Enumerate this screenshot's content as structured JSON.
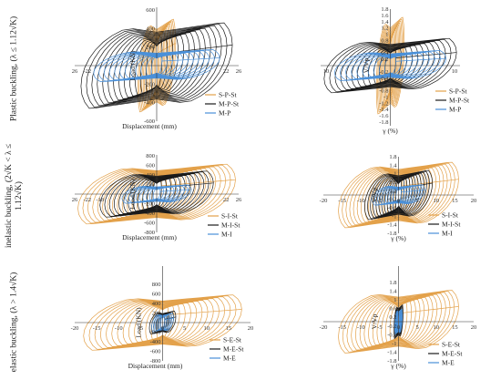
{
  "row_labels": [
    [
      "Plastic buckling, (λ ≤ 1.12√K)"
    ],
    [
      "inelastic buckling, (2√K < λ ≤",
      "1.12√K)"
    ],
    [
      "elastic buckling, (λ > 1.4√K)"
    ]
  ],
  "colors": {
    "St_gold": "#E3A14A",
    "M_black": "#1a1a1a",
    "M_blue": "#4A90D9",
    "axis": "#333333"
  },
  "chart_data": [
    {
      "type": "line",
      "row": 0,
      "col": 0,
      "xlabel": "Displacement (mm)",
      "ylabel": "Load (KN)",
      "xlim": [
        -26,
        26
      ],
      "ylim": [
        -600,
        600
      ],
      "x_ticks": [
        "26",
        "-22",
        "22",
        "26"
      ],
      "y_ticks": [
        "600",
        "400",
        "200",
        "-200",
        "-400",
        "-600"
      ],
      "legend": [
        "S-P-St",
        "M-P-St",
        "M-P"
      ],
      "series": [
        {
          "name": "S-P-St",
          "color": "gold",
          "amp": 6,
          "peak": 520,
          "cycles": 14
        },
        {
          "name": "M-P-St",
          "color": "black",
          "amp": 24,
          "peak": 480,
          "cycles": 14
        },
        {
          "name": "M-P",
          "color": "blue",
          "amp": 20,
          "peak": 180,
          "cycles": 12
        }
      ]
    },
    {
      "type": "line",
      "row": 0,
      "col": 1,
      "xlabel": "γ (%)",
      "ylabel": "V/Vp",
      "xlim": [
        -10,
        10
      ],
      "ylim": [
        -1.8,
        1.8
      ],
      "x_ticks": [
        "10",
        "10"
      ],
      "y_ticks": [
        "1.8",
        "1.6",
        "1.4",
        "1.2",
        "1",
        "0.8",
        "0.6",
        "0.4",
        "0.2",
        "-0.2",
        "-0.4",
        "-0.6",
        "-0.8",
        "-1",
        "-1.2",
        "-1.4",
        "-1.6",
        "-1.8"
      ],
      "legend": [
        "S-P-St",
        "M-P-St",
        "M-P"
      ],
      "series": [
        {
          "name": "S-P-St",
          "color": "gold",
          "amp": 2,
          "peak": 1.6,
          "cycles": 12
        },
        {
          "name": "M-P-St",
          "color": "black",
          "amp": 9.5,
          "peak": 0.9,
          "cycles": 12
        },
        {
          "name": "M-P",
          "color": "blue",
          "amp": 8,
          "peak": 0.5,
          "cycles": 10
        }
      ]
    },
    {
      "type": "line",
      "row": 1,
      "col": 0,
      "xlabel": "Displacement (mm)",
      "ylabel": "Load (KN)",
      "xlim": [
        -26,
        26
      ],
      "ylim": [
        -800,
        800
      ],
      "x_ticks": [
        "26",
        "-22",
        "-18",
        "22",
        "26"
      ],
      "y_ticks": [
        "800",
        "600",
        "400",
        "200",
        "-200",
        "-400",
        "-600",
        "-800"
      ],
      "legend": [
        "S-I-St",
        "M-I-St",
        "M-I"
      ],
      "series": [
        {
          "name": "S-I-St",
          "color": "gold",
          "amp": 25,
          "peak": 650,
          "cycles": 16
        },
        {
          "name": "M-I-St",
          "color": "black",
          "amp": 18,
          "peak": 500,
          "cycles": 12
        },
        {
          "name": "M-I",
          "color": "blue",
          "amp": 11,
          "peak": 200,
          "cycles": 10
        }
      ]
    },
    {
      "type": "line",
      "row": 1,
      "col": 1,
      "xlabel": "γ (%)",
      "ylabel": "V/Vp",
      "xlim": [
        -20,
        20
      ],
      "ylim": [
        -1.8,
        1.8
      ],
      "x_ticks": [
        "-20",
        "-15",
        "-10",
        "-5",
        "0",
        "5",
        "10",
        "15",
        "20"
      ],
      "y_ticks": [
        "1.8",
        "1.4",
        "1",
        "0.6",
        "0.2",
        "-0.2",
        "-0.6",
        "-1",
        "-1.4",
        "-1.8"
      ],
      "legend": [
        "S-I-St",
        "M-I-St",
        "M-I"
      ],
      "series": [
        {
          "name": "S-I-St",
          "color": "gold",
          "amp": 16,
          "peak": 1.6,
          "cycles": 16
        },
        {
          "name": "M-I-St",
          "color": "black",
          "amp": 9,
          "peak": 1.2,
          "cycles": 12
        },
        {
          "name": "M-I",
          "color": "blue",
          "amp": 7,
          "peak": 0.5,
          "cycles": 10
        }
      ]
    },
    {
      "type": "line",
      "row": 2,
      "col": 0,
      "xlabel": "Displacement (mm)",
      "ylabel": "Load (KN)",
      "xlim": [
        -20,
        20
      ],
      "ylim": [
        -800,
        800
      ],
      "x_ticks": [
        "-20",
        "-15",
        "-10",
        "-5",
        "0",
        "5",
        "10",
        "15",
        "20"
      ],
      "y_ticks": [
        "800",
        "600",
        "400",
        "200",
        "-200",
        "-400",
        "-600",
        "-800"
      ],
      "legend": [
        "S-E-St",
        "M-E-St",
        "M-E"
      ],
      "series": [
        {
          "name": "S-E-St",
          "color": "gold",
          "amp": 18,
          "peak": 600,
          "cycles": 14
        },
        {
          "name": "M-E-St",
          "color": "black",
          "amp": 3,
          "peak": 250,
          "cycles": 6
        },
        {
          "name": "M-E",
          "color": "blue",
          "amp": 2.5,
          "peak": 200,
          "cycles": 6
        }
      ]
    },
    {
      "type": "line",
      "row": 2,
      "col": 1,
      "xlabel": "γ (%)",
      "ylabel": "V/Vp",
      "xlim": [
        -20,
        20
      ],
      "ylim": [
        -1.8,
        1.8
      ],
      "x_ticks": [
        "-20",
        "-15",
        "-10",
        "-5",
        "0",
        "5",
        "10",
        "15",
        "20"
      ],
      "y_ticks": [
        "1.8",
        "1.4",
        "1",
        "0.6",
        "0.2",
        "-0.2",
        "-0.6",
        "-1",
        "-1.4",
        "-1.8"
      ],
      "legend": [
        "S-E-St",
        "M-E-St",
        "M-E"
      ],
      "series": [
        {
          "name": "S-E-St",
          "color": "gold",
          "amp": 16,
          "peak": 1.5,
          "cycles": 14
        },
        {
          "name": "M-E-St",
          "color": "black",
          "amp": 1.2,
          "peak": 0.8,
          "cycles": 6
        },
        {
          "name": "M-E",
          "color": "blue",
          "amp": 1.0,
          "peak": 0.6,
          "cycles": 6
        }
      ]
    }
  ]
}
